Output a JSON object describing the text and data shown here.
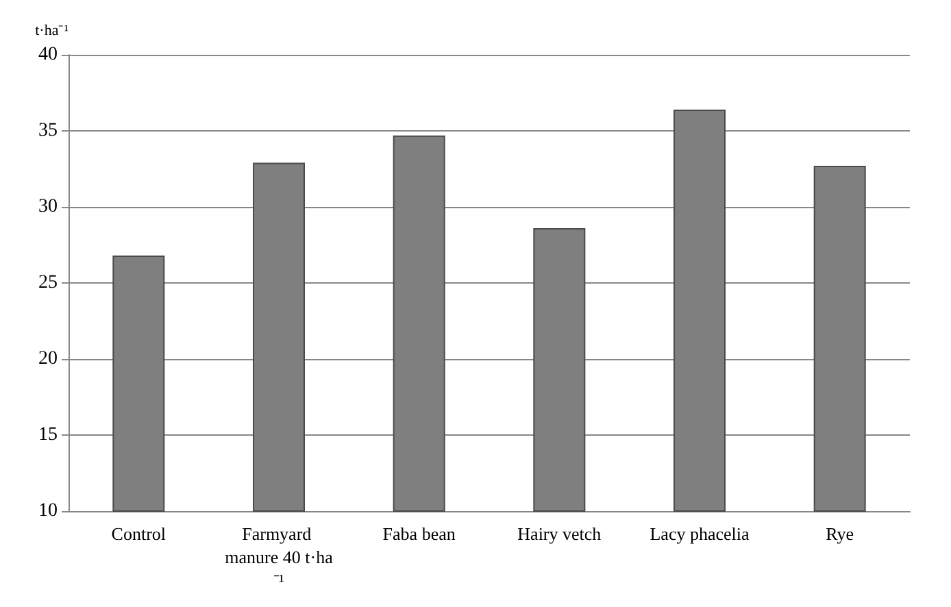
{
  "chart_data": {
    "type": "bar",
    "ylabel": "t·ha⁻¹",
    "categories": [
      "Control",
      "Farmyard manure 40 t·ha⁻¹",
      "Faba bean",
      "Hairy vetch",
      "Lacy phacelia",
      "Rye"
    ],
    "values": [
      26.8,
      32.9,
      34.7,
      28.6,
      36.4,
      32.7
    ],
    "color": "#7f7f7f",
    "ylim": [
      10,
      40
    ],
    "yticks": [
      10,
      15,
      20,
      25,
      30,
      35,
      40
    ],
    "grid": true
  }
}
